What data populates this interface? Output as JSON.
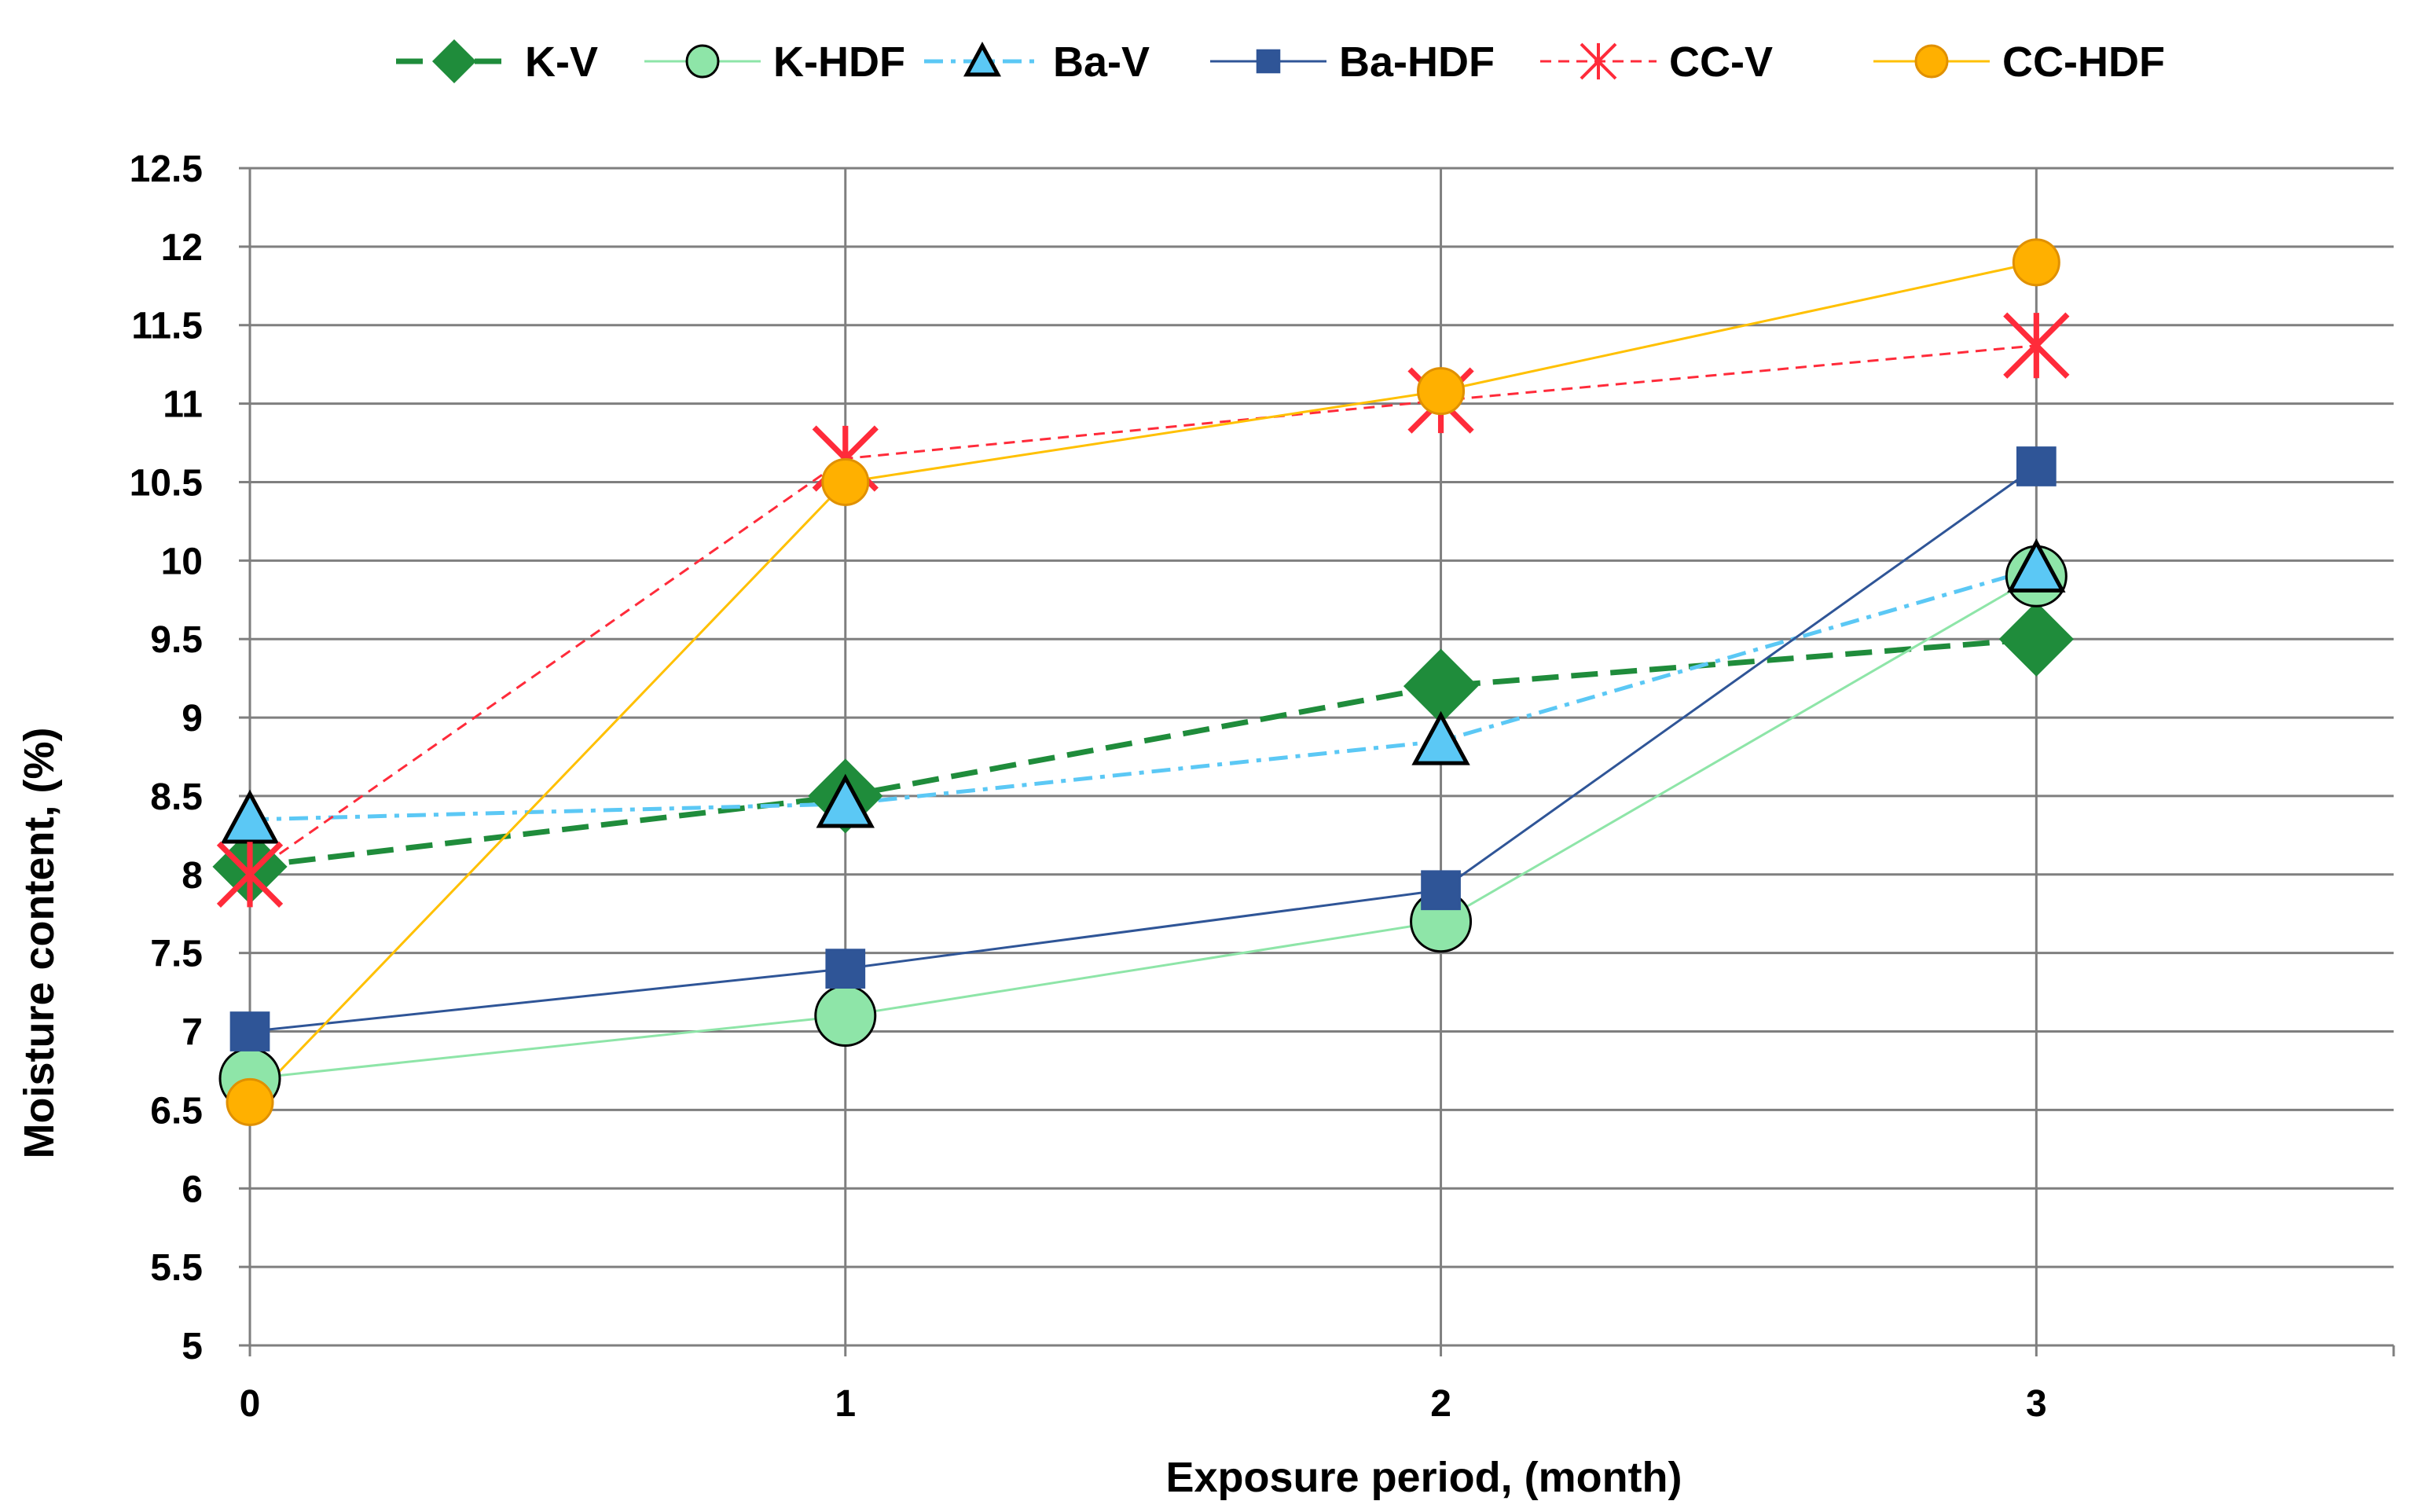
{
  "chart_data": {
    "type": "line",
    "title": "",
    "xlabel": "Exposure period, (month)",
    "ylabel": "Moisture content, (%)",
    "x": [
      0,
      1,
      2,
      3
    ],
    "x_tick_labels": [
      "0",
      "1",
      "2",
      "3"
    ],
    "xlim": [
      0,
      3.6
    ],
    "ylim": [
      5,
      12.5
    ],
    "y_ticks": [
      5,
      5.5,
      6,
      6.5,
      7,
      7.5,
      8,
      8.5,
      9,
      9.5,
      10,
      10.5,
      11,
      11.5,
      12,
      12.5
    ],
    "y_tick_labels": [
      "5",
      "5.5",
      "6",
      "6.5",
      "7",
      "7.5",
      "8",
      "8.5",
      "9",
      "9.5",
      "10",
      "10.5",
      "11",
      "11.5",
      "12",
      "12.5"
    ],
    "grid": true,
    "legend_position": "top",
    "series": [
      {
        "name": "K-V",
        "values": [
          8.05,
          8.5,
          9.2,
          9.5
        ],
        "color": "#1f8c3b",
        "dash": "long-dash",
        "marker": "diamond",
        "marker_fill": "#1f8c3b",
        "marker_stroke": "#1f8c3b"
      },
      {
        "name": "K-HDF",
        "values": [
          6.7,
          7.1,
          7.7,
          9.9
        ],
        "color": "#8ee5a8",
        "dash": "solid",
        "marker": "circle",
        "marker_fill": "#8ee5a8",
        "marker_stroke": "#000000"
      },
      {
        "name": "Ba-V",
        "values": [
          8.35,
          8.45,
          8.85,
          9.95
        ],
        "color": "#5bc8f5",
        "dash": "dash-dot",
        "marker": "triangle",
        "marker_fill": "#5bc8f5",
        "marker_stroke": "#000000"
      },
      {
        "name": "Ba-HDF",
        "values": [
          7.0,
          7.4,
          7.9,
          10.6
        ],
        "color": "#2f5597",
        "dash": "solid",
        "marker": "square",
        "marker_fill": "#2f5597",
        "marker_stroke": "#2f5597"
      },
      {
        "name": "CC-V",
        "values": [
          8.0,
          10.65,
          11.02,
          11.37
        ],
        "color": "#ff2b3a",
        "dash": "short-dash",
        "marker": "asterisk",
        "marker_fill": "#ff2b3a",
        "marker_stroke": "#ff2b3a"
      },
      {
        "name": "CC-HDF",
        "values": [
          6.55,
          10.5,
          11.08,
          11.9
        ],
        "color": "#ffc000",
        "dash": "solid",
        "marker": "circle",
        "marker_fill": "#ffb000",
        "marker_stroke": "#e09000"
      }
    ]
  }
}
